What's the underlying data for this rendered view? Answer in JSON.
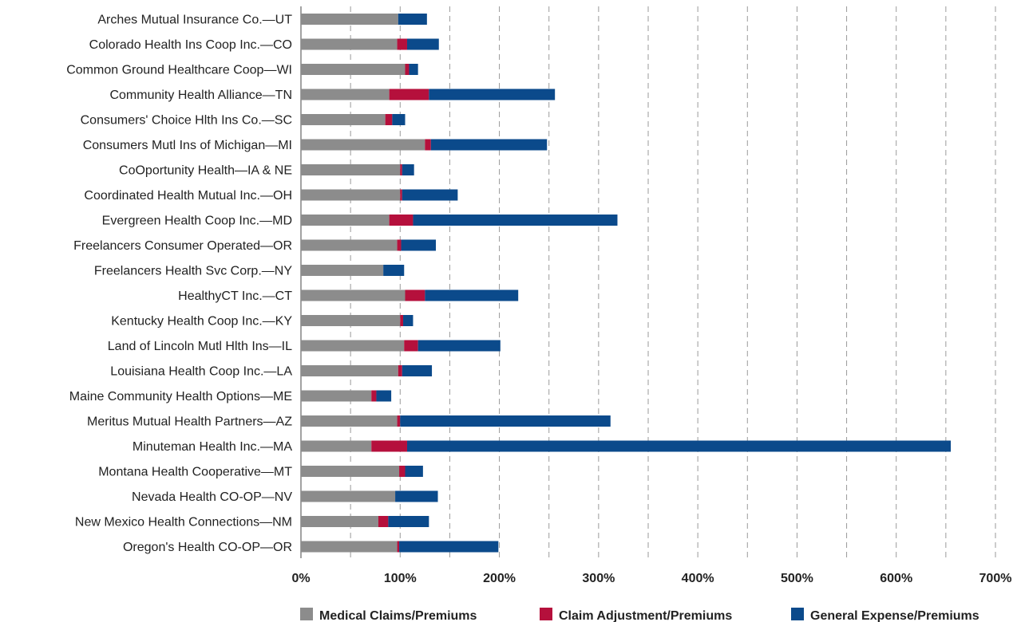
{
  "chart_data": {
    "type": "bar",
    "orientation": "horizontal",
    "stacked": true,
    "title": "",
    "xlabel": "",
    "ylabel": "",
    "xlim": [
      0,
      700
    ],
    "x_ticks": [
      "0%",
      "100%",
      "200%",
      "300%",
      "400%",
      "500%",
      "600%",
      "700%"
    ],
    "grid": "vertical dashed",
    "legend_position": "bottom",
    "categories": [
      "Arches Mutual Insurance Co.—UT",
      "Colorado Health Ins Coop Inc.—CO",
      "Common Ground Healthcare Coop—WI",
      "Community Health Alliance—TN",
      "Consumers' Choice Hlth Ins Co.—SC",
      "Consumers Mutl Ins of Michigan—MI",
      "CoOportunity Health—IA & NE",
      "Coordinated Health Mutual Inc.—OH",
      "Evergreen Health Coop Inc.—MD",
      "Freelancers Consumer Operated—OR",
      "Freelancers Health Svc Corp.—NY",
      "HealthyCT Inc.—CT",
      "Kentucky Health Coop Inc.—KY",
      "Land of Lincoln Mutl Hlth Ins—IL",
      "Louisiana Health Coop Inc.—LA",
      "Maine Community Health Options—ME",
      "Meritus Mutual Health Partners—AZ",
      "Minuteman Health Inc.—MA",
      "Montana Health Cooperative—MT",
      "Nevada Health CO-OP—NV",
      "New Mexico Health Connections—NM",
      "Oregon's Health CO-OP—OR"
    ],
    "series": [
      {
        "name": "Medical Claims/Premiums",
        "color": "#8c8c8c",
        "values": [
          98,
          97,
          105,
          89,
          85,
          125,
          100,
          100,
          89,
          97,
          83,
          105,
          100,
          104,
          98,
          71,
          97,
          71,
          99,
          95,
          78,
          97
        ]
      },
      {
        "name": "Claim Adjustment/Premiums",
        "color": "#b5103c",
        "values": [
          0,
          10,
          4,
          40,
          7,
          6,
          2,
          2,
          24,
          4,
          0,
          20,
          3,
          14,
          4,
          5,
          3,
          36,
          6,
          0,
          10,
          2
        ]
      },
      {
        "name": "General Expense/Premiums",
        "color": "#0b4a8b",
        "values": [
          29,
          32,
          9,
          127,
          13,
          117,
          12,
          56,
          206,
          35,
          21,
          94,
          10,
          83,
          30,
          15,
          212,
          548,
          18,
          43,
          41,
          100
        ]
      }
    ]
  }
}
